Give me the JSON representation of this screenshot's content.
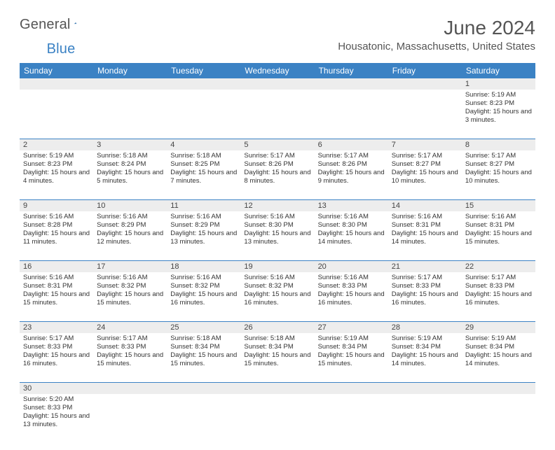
{
  "brand": {
    "part1": "General",
    "part2": "Blue"
  },
  "title": "June 2024",
  "location": "Housatonic, Massachusetts, United States",
  "colors": {
    "header_bg": "#3b82c4",
    "header_text": "#ffffff",
    "daynum_bg": "#ededed",
    "border": "#3b82c4",
    "text": "#333333",
    "title_text": "#555555"
  },
  "day_headers": [
    "Sunday",
    "Monday",
    "Tuesday",
    "Wednesday",
    "Thursday",
    "Friday",
    "Saturday"
  ],
  "weeks": [
    [
      null,
      null,
      null,
      null,
      null,
      null,
      {
        "n": "1",
        "sr": "5:19 AM",
        "ss": "8:23 PM",
        "dl": "15 hours and 3 minutes."
      }
    ],
    [
      {
        "n": "2",
        "sr": "5:19 AM",
        "ss": "8:23 PM",
        "dl": "15 hours and 4 minutes."
      },
      {
        "n": "3",
        "sr": "5:18 AM",
        "ss": "8:24 PM",
        "dl": "15 hours and 5 minutes."
      },
      {
        "n": "4",
        "sr": "5:18 AM",
        "ss": "8:25 PM",
        "dl": "15 hours and 7 minutes."
      },
      {
        "n": "5",
        "sr": "5:17 AM",
        "ss": "8:26 PM",
        "dl": "15 hours and 8 minutes."
      },
      {
        "n": "6",
        "sr": "5:17 AM",
        "ss": "8:26 PM",
        "dl": "15 hours and 9 minutes."
      },
      {
        "n": "7",
        "sr": "5:17 AM",
        "ss": "8:27 PM",
        "dl": "15 hours and 10 minutes."
      },
      {
        "n": "8",
        "sr": "5:17 AM",
        "ss": "8:27 PM",
        "dl": "15 hours and 10 minutes."
      }
    ],
    [
      {
        "n": "9",
        "sr": "5:16 AM",
        "ss": "8:28 PM",
        "dl": "15 hours and 11 minutes."
      },
      {
        "n": "10",
        "sr": "5:16 AM",
        "ss": "8:29 PM",
        "dl": "15 hours and 12 minutes."
      },
      {
        "n": "11",
        "sr": "5:16 AM",
        "ss": "8:29 PM",
        "dl": "15 hours and 13 minutes."
      },
      {
        "n": "12",
        "sr": "5:16 AM",
        "ss": "8:30 PM",
        "dl": "15 hours and 13 minutes."
      },
      {
        "n": "13",
        "sr": "5:16 AM",
        "ss": "8:30 PM",
        "dl": "15 hours and 14 minutes."
      },
      {
        "n": "14",
        "sr": "5:16 AM",
        "ss": "8:31 PM",
        "dl": "15 hours and 14 minutes."
      },
      {
        "n": "15",
        "sr": "5:16 AM",
        "ss": "8:31 PM",
        "dl": "15 hours and 15 minutes."
      }
    ],
    [
      {
        "n": "16",
        "sr": "5:16 AM",
        "ss": "8:31 PM",
        "dl": "15 hours and 15 minutes."
      },
      {
        "n": "17",
        "sr": "5:16 AM",
        "ss": "8:32 PM",
        "dl": "15 hours and 15 minutes."
      },
      {
        "n": "18",
        "sr": "5:16 AM",
        "ss": "8:32 PM",
        "dl": "15 hours and 16 minutes."
      },
      {
        "n": "19",
        "sr": "5:16 AM",
        "ss": "8:32 PM",
        "dl": "15 hours and 16 minutes."
      },
      {
        "n": "20",
        "sr": "5:16 AM",
        "ss": "8:33 PM",
        "dl": "15 hours and 16 minutes."
      },
      {
        "n": "21",
        "sr": "5:17 AM",
        "ss": "8:33 PM",
        "dl": "15 hours and 16 minutes."
      },
      {
        "n": "22",
        "sr": "5:17 AM",
        "ss": "8:33 PM",
        "dl": "15 hours and 16 minutes."
      }
    ],
    [
      {
        "n": "23",
        "sr": "5:17 AM",
        "ss": "8:33 PM",
        "dl": "15 hours and 16 minutes."
      },
      {
        "n": "24",
        "sr": "5:17 AM",
        "ss": "8:33 PM",
        "dl": "15 hours and 15 minutes."
      },
      {
        "n": "25",
        "sr": "5:18 AM",
        "ss": "8:34 PM",
        "dl": "15 hours and 15 minutes."
      },
      {
        "n": "26",
        "sr": "5:18 AM",
        "ss": "8:34 PM",
        "dl": "15 hours and 15 minutes."
      },
      {
        "n": "27",
        "sr": "5:19 AM",
        "ss": "8:34 PM",
        "dl": "15 hours and 15 minutes."
      },
      {
        "n": "28",
        "sr": "5:19 AM",
        "ss": "8:34 PM",
        "dl": "15 hours and 14 minutes."
      },
      {
        "n": "29",
        "sr": "5:19 AM",
        "ss": "8:34 PM",
        "dl": "15 hours and 14 minutes."
      }
    ],
    [
      {
        "n": "30",
        "sr": "5:20 AM",
        "ss": "8:33 PM",
        "dl": "15 hours and 13 minutes."
      },
      null,
      null,
      null,
      null,
      null,
      null
    ]
  ],
  "labels": {
    "sunrise": "Sunrise:",
    "sunset": "Sunset:",
    "daylight": "Daylight:"
  }
}
